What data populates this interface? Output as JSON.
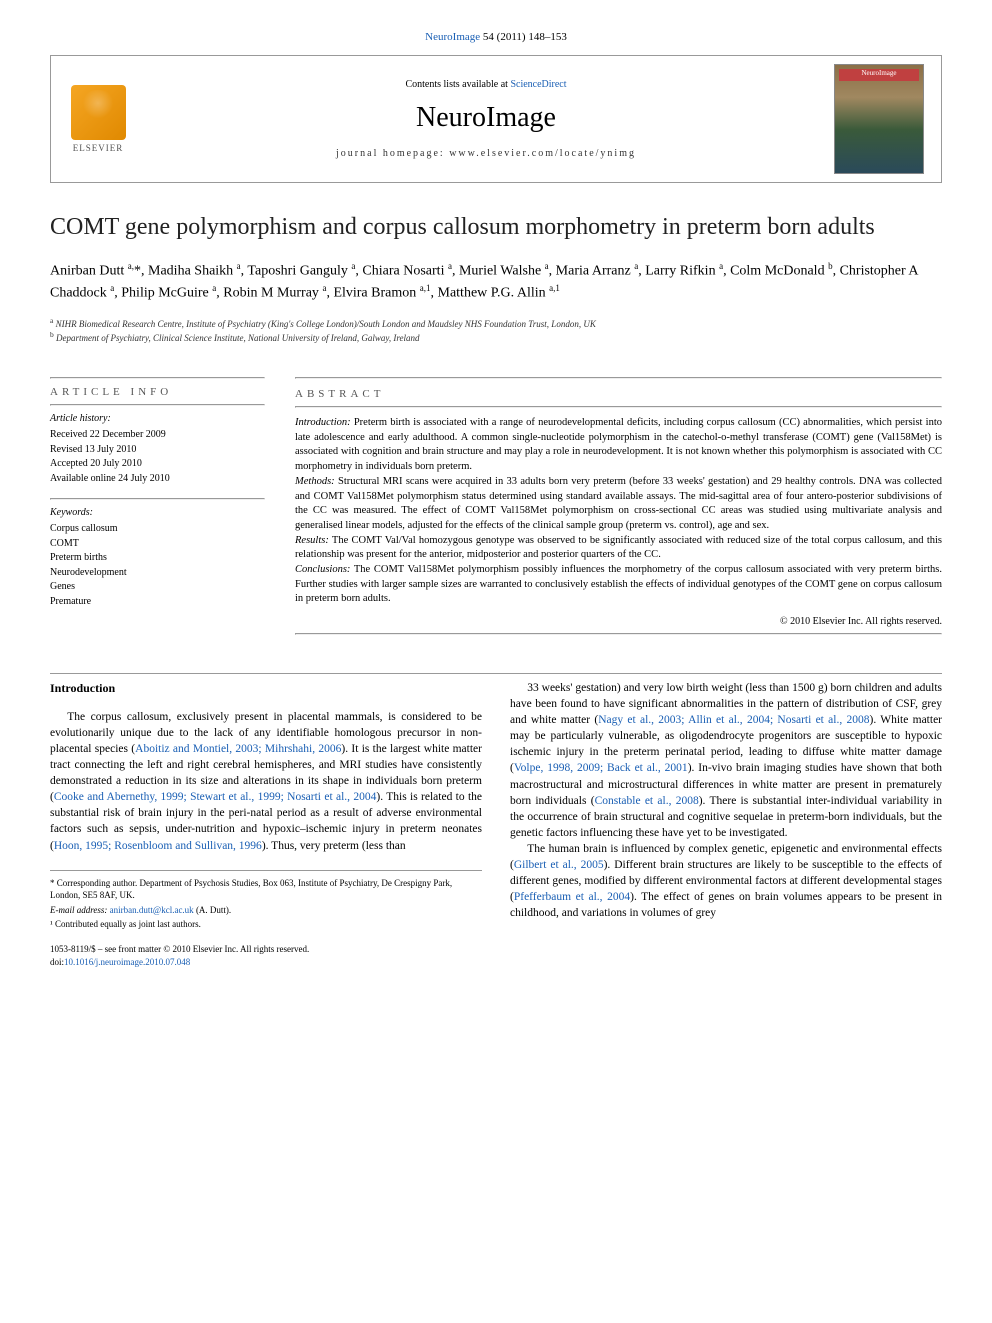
{
  "journal_ref": {
    "prefix": "NeuroImage",
    "citation": "54 (2011) 148–153",
    "link_text": "NeuroImage"
  },
  "header": {
    "contents_prefix": "Contents lists available at ",
    "contents_link": "ScienceDirect",
    "journal_name": "NeuroImage",
    "homepage_label": "journal homepage: www.elsevier.com/locate/ynimg",
    "publisher_name": "ELSEVIER",
    "cover_label": "NeuroImage"
  },
  "title": "COMT gene polymorphism and corpus callosum morphometry in preterm born adults",
  "authors_html": "Anirban Dutt <sup>a,</sup>*, Madiha Shaikh <sup>a</sup>, Taposhri Ganguly <sup>a</sup>, Chiara Nosarti <sup>a</sup>, Muriel Walshe <sup>a</sup>, Maria Arranz <sup>a</sup>, Larry Rifkin <sup>a</sup>, Colm McDonald <sup>b</sup>, Christopher A Chaddock <sup>a</sup>, Philip McGuire <sup>a</sup>, Robin M Murray <sup>a</sup>, Elvira Bramon <sup>a,1</sup>, Matthew P.G. Allin <sup>a,1</sup>",
  "affiliations": [
    {
      "sup": "a",
      "text": "NIHR Biomedical Research Centre, Institute of Psychiatry (King's College London)/South London and Maudsley NHS Foundation Trust, London, UK"
    },
    {
      "sup": "b",
      "text": "Department of Psychiatry, Clinical Science Institute, National University of Ireland, Galway, Ireland"
    }
  ],
  "article_info": {
    "heading": "ARTICLE INFO",
    "history_label": "Article history:",
    "history": [
      "Received 22 December 2009",
      "Revised 13 July 2010",
      "Accepted 20 July 2010",
      "Available online 24 July 2010"
    ],
    "keywords_label": "Keywords:",
    "keywords": [
      "Corpus callosum",
      "COMT",
      "Preterm births",
      "Neurodevelopment",
      "Genes",
      "Premature"
    ]
  },
  "abstract": {
    "heading": "ABSTRACT",
    "sections": [
      {
        "label": "Introduction:",
        "text": "Preterm birth is associated with a range of neurodevelopmental deficits, including corpus callosum (CC) abnormalities, which persist into late adolescence and early adulthood. A common single-nucleotide polymorphism in the catechol-o-methyl transferase (COMT) gene (Val158Met) is associated with cognition and brain structure and may play a role in neurodevelopment. It is not known whether this polymorphism is associated with CC morphometry in individuals born preterm."
      },
      {
        "label": "Methods:",
        "text": "Structural MRI scans were acquired in 33 adults born very preterm (before 33 weeks' gestation) and 29 healthy controls. DNA was collected and COMT Val158Met polymorphism status determined using standard available assays. The mid-sagittal area of four antero-posterior subdivisions of the CC was measured. The effect of COMT Val158Met polymorphism on cross-sectional CC areas was studied using multivariate analysis and generalised linear models, adjusted for the effects of the clinical sample group (preterm vs. control), age and sex."
      },
      {
        "label": "Results:",
        "text": "The COMT Val/Val homozygous genotype was observed to be significantly associated with reduced size of the total corpus callosum, and this relationship was present for the anterior, midposterior and posterior quarters of the CC."
      },
      {
        "label": "Conclusions:",
        "text": "The COMT Val158Met polymorphism possibly influences the morphometry of the corpus callosum associated with very preterm births. Further studies with larger sample sizes are warranted to conclusively establish the effects of individual genotypes of the COMT gene on corpus callosum in preterm born adults."
      }
    ],
    "copyright": "© 2010 Elsevier Inc. All rights reserved."
  },
  "body": {
    "intro_heading": "Introduction",
    "para1_pre": "The corpus callosum, exclusively present in placental mammals, is considered to be evolutionarily unique due to the lack of any identifiable homologous precursor in non-placental species (",
    "para1_link1": "Aboitiz and Montiel, 2003; Mihrshahi, 2006",
    "para1_mid1": "). It is the largest white matter tract connecting the left and right cerebral hemispheres, and MRI studies have consistently demonstrated a reduction in its size and alterations in its shape in individuals born preterm (",
    "para1_link2": "Cooke and Abernethy, 1999; Stewart et al., 1999; Nosarti et al., 2004",
    "para1_mid2": "). This is related to the substantial risk of brain injury in the peri-natal period as a result of adverse environmental factors such as sepsis, under-nutrition and hypoxic–ischemic injury in preterm neonates (",
    "para1_link3": "Hoon, 1995; Rosenbloom and Sullivan, 1996",
    "para1_post": "). Thus, very preterm (less than",
    "para2_pre": "33 weeks' gestation) and very low birth weight (less than 1500 g) born children and adults have been found to have significant abnormalities in the pattern of distribution of CSF, grey and white matter (",
    "para2_link1": "Nagy et al., 2003; Allin et al., 2004; Nosarti et al., 2008",
    "para2_mid1": "). White matter may be particularly vulnerable, as oligodendrocyte progenitors are susceptible to hypoxic ischemic injury in the preterm perinatal period, leading to diffuse white matter damage (",
    "para2_link2": "Volpe, 1998, 2009; Back et al., 2001",
    "para2_mid2": "). In-vivo brain imaging studies have shown that both macrostructural and microstructural differences in white matter are present in prematurely born individuals (",
    "para2_link3": "Constable et al., 2008",
    "para2_post": "). There is substantial inter-individual variability in the occurrence of brain structural and cognitive sequelae in preterm-born individuals, but the genetic factors influencing these have yet to be investigated.",
    "para3_pre": "The human brain is influenced by complex genetic, epigenetic and environmental effects (",
    "para3_link1": "Gilbert et al., 2005",
    "para3_mid1": "). Different brain structures are likely to be susceptible to the effects of different genes, modified by different environmental factors at different developmental stages (",
    "para3_link2": "Pfefferbaum et al., 2004",
    "para3_post": "). The effect of genes on brain volumes appears to be present in childhood, and variations in volumes of grey"
  },
  "footnotes": {
    "corr_label": "* Corresponding author. Department of Psychosis Studies, Box 063, Institute of Psychiatry, De Crespigny Park, London, SE5 8AF, UK.",
    "email_label": "E-mail address:",
    "email": "anirban.dutt@kcl.ac.uk",
    "email_suffix": "(A. Dutt).",
    "note1": "¹ Contributed equally as joint last authors."
  },
  "footer": {
    "issn_line": "1053-8119/$ – see front matter © 2010 Elsevier Inc. All rights reserved.",
    "doi_prefix": "doi:",
    "doi": "10.1016/j.neuroimage.2010.07.048"
  },
  "colors": {
    "link": "#1a5fb4",
    "rule": "#999999",
    "elsevier_orange": "#e08900"
  }
}
